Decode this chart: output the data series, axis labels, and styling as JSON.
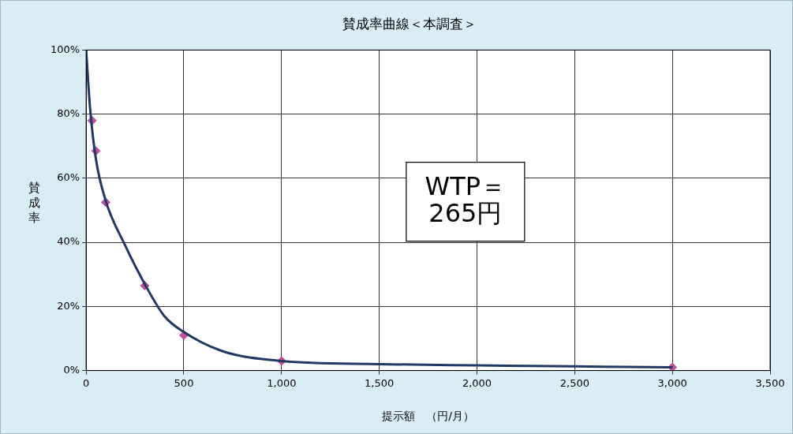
{
  "chart_data": {
    "type": "line",
    "title": "賛成率曲線＜本調査＞",
    "xlabel": "提示額　（円/月）",
    "ylabel": "賛成率",
    "xlim": [
      0,
      3500
    ],
    "xticks": [
      0,
      500,
      {
        "value": 1000,
        "label": "1,000"
      },
      {
        "value": 1500,
        "label": "1,500"
      },
      {
        "value": 2000,
        "label": "2,000"
      },
      {
        "value": 2500,
        "label": "2,500"
      },
      {
        "value": 3000,
        "label": "3,000"
      },
      {
        "value": 3500,
        "label": "3,500"
      }
    ],
    "ylim": [
      0,
      100
    ],
    "yticks": [
      {
        "value": 0,
        "label": "0%"
      },
      {
        "value": 20,
        "label": "20%"
      },
      {
        "value": 40,
        "label": "40%"
      },
      {
        "value": 60,
        "label": "60%"
      },
      {
        "value": 80,
        "label": "80%"
      },
      {
        "value": 100,
        "label": "100%"
      }
    ],
    "grid": true,
    "legend": false,
    "series": [
      {
        "type": "line",
        "color": "#1f3864",
        "marker": "none",
        "line_style": "solid",
        "x": [
          0,
          20,
          50,
          100,
          200,
          300,
          400,
          500,
          700,
          1000,
          1500,
          2000,
          2500,
          3000
        ],
        "values": [
          100,
          82,
          66,
          53,
          39,
          27,
          17,
          12,
          6,
          3,
          2,
          1.6,
          1.3,
          1
        ]
      },
      {
        "type": "scatter",
        "color": "#c0509f",
        "marker": "diamond",
        "x": [
          30,
          50,
          100,
          300,
          500,
          1000,
          3000
        ],
        "values": [
          78,
          68.5,
          52.5,
          26.5,
          11,
          3,
          1
        ]
      }
    ],
    "annotations": [
      "WTP＝",
      "265円"
    ]
  }
}
